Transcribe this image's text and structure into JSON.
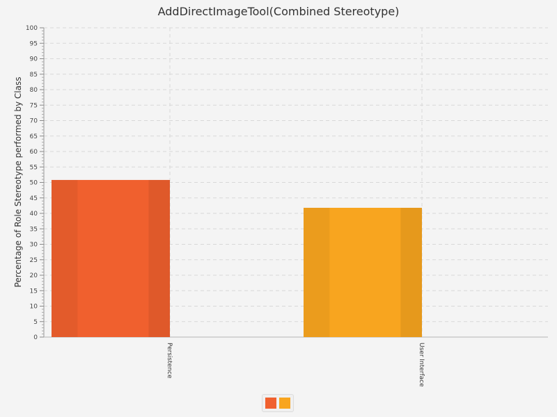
{
  "chart_data": {
    "type": "bar",
    "title": "AddDirectImageTool(Combined Stereotype)",
    "xlabel": "",
    "ylabel": "Percentage of Role Stereotype performed by Class",
    "categories": [
      "Persistence",
      "User Interface"
    ],
    "values": [
      50.8,
      41.8
    ],
    "colors": [
      "#f0602e",
      "#f8a51f"
    ],
    "ylim": [
      0,
      100
    ],
    "y_major_step": 5,
    "y_minor_step": 1,
    "grid": true,
    "legend": {
      "placement": "bottom-center",
      "entries": [
        {
          "label": "",
          "color": "#f0602e"
        },
        {
          "label": "",
          "color": "#f8a51f"
        }
      ]
    }
  }
}
